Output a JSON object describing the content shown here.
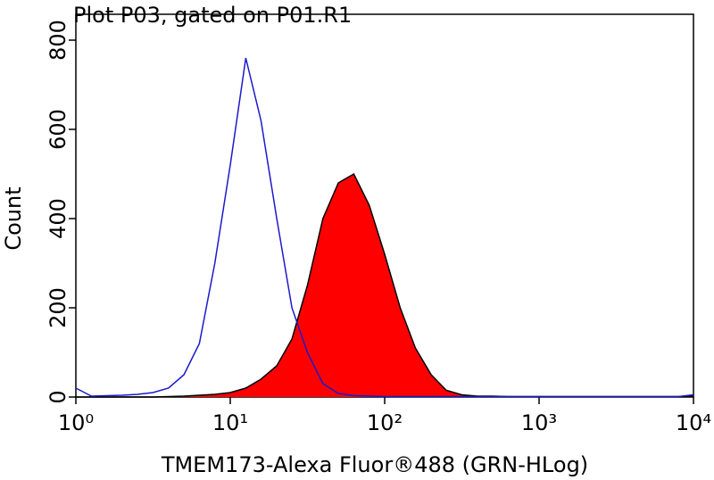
{
  "chart_data": {
    "type": "histogram-overlay",
    "title": "Plot P03, gated on P01.R1",
    "x_label": "TMEM173-Alexa Fluor®488 (GRN-HLog)",
    "y_label": "Count",
    "xscale": "log",
    "xlim": [
      1,
      10000
    ],
    "ylim": [
      0,
      858
    ],
    "xticks": [
      {
        "value": 1,
        "label": "10⁰"
      },
      {
        "value": 10,
        "label": "10¹"
      },
      {
        "value": 100,
        "label": "10²"
      },
      {
        "value": 1000,
        "label": "10³"
      },
      {
        "value": 10000,
        "label": "10⁴"
      }
    ],
    "yticks": [
      0,
      200,
      400,
      600,
      800
    ],
    "x": [
      1,
      1.26,
      1.58,
      2,
      2.51,
      3.16,
      3.98,
      5.01,
      6.31,
      7.94,
      10,
      12.6,
      15.8,
      20,
      25.1,
      31.6,
      39.8,
      50.1,
      63.1,
      79.4,
      100,
      126,
      158,
      200,
      251,
      316,
      398,
      501,
      631,
      794,
      1000,
      1260,
      1580,
      2000,
      2510,
      3160,
      3980,
      5010,
      6310,
      7940,
      10000
    ],
    "series": [
      {
        "color": "#ff0000",
        "edge_color": "#000000",
        "filled": true,
        "values": [
          0,
          0,
          0,
          0,
          0,
          0,
          1,
          2,
          4,
          6,
          10,
          20,
          40,
          70,
          130,
          250,
          400,
          480,
          500,
          430,
          320,
          200,
          110,
          50,
          15,
          5,
          2,
          2,
          1,
          1,
          1,
          1,
          1,
          1,
          1,
          1,
          1,
          1,
          1,
          1,
          2
        ]
      },
      {
        "color": "#1a1acc",
        "filled": false,
        "values": [
          20,
          2,
          3,
          4,
          6,
          10,
          20,
          50,
          120,
          300,
          520,
          760,
          620,
          400,
          200,
          100,
          30,
          8,
          3,
          2,
          1,
          1,
          1,
          1,
          1,
          1,
          1,
          1,
          1,
          1,
          1,
          1,
          1,
          1,
          1,
          1,
          1,
          1,
          1,
          1,
          5
        ]
      }
    ]
  }
}
